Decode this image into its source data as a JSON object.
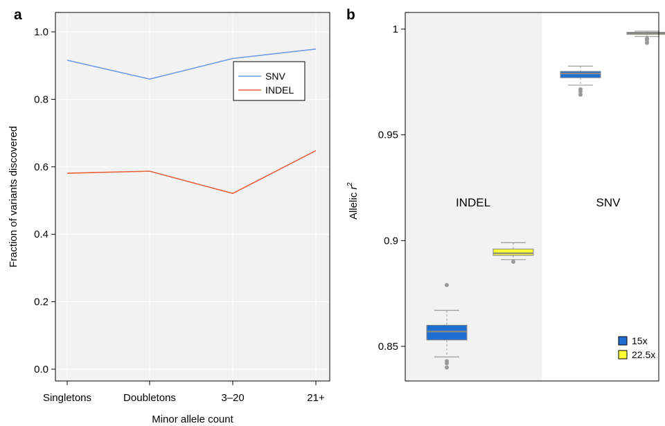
{
  "panels": {
    "a_label": "a",
    "b_label": "b"
  },
  "chart_data": [
    {
      "panel": "a",
      "type": "line",
      "categories": [
        "Singletons",
        "Doubletons",
        "3–20",
        "21+"
      ],
      "series": [
        {
          "name": "SNV",
          "color": "#6f9be8",
          "values": [
            0.916,
            0.86,
            0.921,
            0.949
          ]
        },
        {
          "name": "INDEL",
          "color": "#e8603c",
          "values": [
            0.581,
            0.587,
            0.521,
            0.648
          ]
        }
      ],
      "xlabel": "Minor allele count",
      "ylabel": "Fraction of variants discovered",
      "ylim": [
        0.0,
        1.0
      ],
      "yticks": [
        "0.0",
        "0.2",
        "0.4",
        "0.6",
        "0.8",
        "1.0"
      ],
      "grid": true,
      "background": "#f2f2f2",
      "legend": "top-right"
    },
    {
      "panel": "b",
      "type": "box",
      "ylabel": "Allelic",
      "ylabel_var": "r",
      "ylabel_sup": "2",
      "ylim": [
        0.835,
        1.005
      ],
      "yticks": [
        "0.85",
        "0.9",
        "0.95",
        "1"
      ],
      "groups": [
        "INDEL",
        "SNV"
      ],
      "legend": "bottom-right",
      "legend_entries": [
        {
          "name": "15x",
          "color": "#1f6fd1"
        },
        {
          "name": "22.5x",
          "color": "#ffff33"
        }
      ],
      "boxes": [
        {
          "group": "INDEL",
          "depth": "15x",
          "color": "#1f6fd1",
          "whisker_low": 0.845,
          "q1": 0.853,
          "median": 0.857,
          "q3": 0.86,
          "whisker_high": 0.867,
          "outliers": [
            0.879,
            0.843,
            0.842,
            0.84
          ]
        },
        {
          "group": "INDEL",
          "depth": "22.5x",
          "color": "#ffff33",
          "whisker_low": 0.891,
          "q1": 0.893,
          "median": 0.894,
          "q3": 0.896,
          "whisker_high": 0.899,
          "outliers": [
            0.89
          ]
        },
        {
          "group": "SNV",
          "depth": "15x",
          "color": "#1f6fd1",
          "whisker_low": 0.9735,
          "q1": 0.977,
          "median": 0.979,
          "q3": 0.98,
          "whisker_high": 0.9825,
          "outliers": [
            0.9715,
            0.9705,
            0.969
          ]
        },
        {
          "group": "SNV",
          "depth": "22.5x",
          "color": "#ffff33",
          "whisker_low": 0.9965,
          "q1": 0.9975,
          "median": 0.998,
          "q3": 0.9985,
          "whisker_high": 0.999,
          "outliers": [
            0.9955,
            0.9948,
            0.9935
          ]
        }
      ]
    }
  ]
}
